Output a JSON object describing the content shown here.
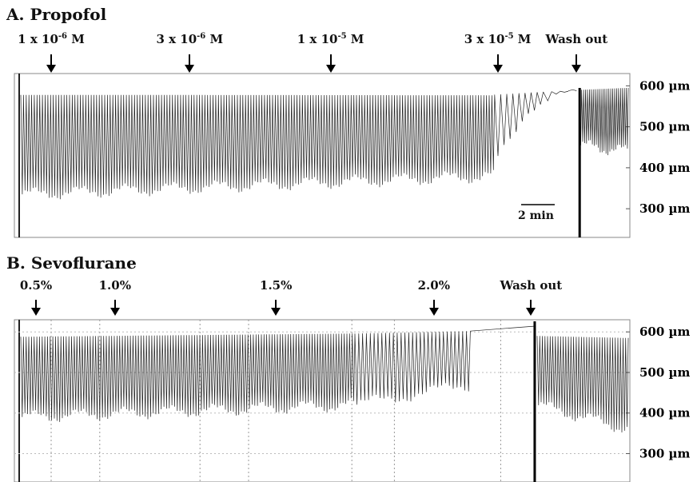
{
  "chart_data": [
    {
      "type": "line",
      "title": "A. Propofol",
      "xlabel": "",
      "ylabel": "",
      "y_unit": "µm",
      "yticks": [
        {
          "value": 600,
          "label": "600 µm"
        },
        {
          "value": 500,
          "label": "500 µm"
        },
        {
          "value": 400,
          "label": "400 µm"
        },
        {
          "value": 300,
          "label": "300 µm"
        }
      ],
      "ylim": [
        230,
        630
      ],
      "grid": false,
      "scale_bar": "2 min",
      "markers": [
        {
          "label_base": "1 x 10",
          "label_exp": "-6",
          "label_tail": " M",
          "x_frac": 0.05
        },
        {
          "label_base": "3 x 10",
          "label_exp": "-6",
          "label_tail": " M",
          "x_frac": 0.278
        },
        {
          "label_base": "1 x 10",
          "label_exp": "-5",
          "label_tail": " M",
          "x_frac": 0.51
        },
        {
          "label_base": "3 x 10",
          "label_exp": "-5",
          "label_tail": " M",
          "x_frac": 0.785
        },
        {
          "label_base": "Wash out",
          "label_exp": "",
          "label_tail": "",
          "x_frac": 0.915
        }
      ],
      "trace_segments": [
        {
          "t": [
            0.0,
            0.78
          ],
          "top": [
            578,
            577
          ],
          "trough": [
            335,
            380
          ],
          "beats": 175
        },
        {
          "t": [
            0.78,
            0.86
          ],
          "top": [
            578,
            585
          ],
          "trough": [
            420,
            560
          ],
          "beats": 8
        },
        {
          "t": [
            0.86,
            0.915
          ],
          "top": [
            585,
            588
          ],
          "trough": [
            560,
            588
          ],
          "beats": 4
        },
        {
          "t": [
            0.92,
            1.0
          ],
          "top": [
            590,
            595
          ],
          "trough": [
            455,
            440
          ],
          "beats": 25
        }
      ]
    },
    {
      "type": "line",
      "title": "B. Sevoflurane",
      "xlabel": "",
      "ylabel": "",
      "y_unit": "µm",
      "yticks": [
        {
          "value": 600,
          "label": "600 µm"
        },
        {
          "value": 500,
          "label": "500 µm"
        },
        {
          "value": 400,
          "label": "400 µm"
        },
        {
          "value": 300,
          "label": "300 µm"
        }
      ],
      "ylim": [
        230,
        630
      ],
      "grid": true,
      "markers": [
        {
          "label_base": "0.5%",
          "label_exp": "",
          "label_tail": "",
          "x_frac": 0.025
        },
        {
          "label_base": "1.0%",
          "label_exp": "",
          "label_tail": "",
          "x_frac": 0.155
        },
        {
          "label_base": "1.5%",
          "label_exp": "",
          "label_tail": "",
          "x_frac": 0.42
        },
        {
          "label_base": "2.0%",
          "label_exp": "",
          "label_tail": "",
          "x_frac": 0.68
        },
        {
          "label_base": "Wash out",
          "label_exp": "",
          "label_tail": "",
          "x_frac": 0.84
        }
      ],
      "trace_segments": [
        {
          "t": [
            0.0,
            0.55
          ],
          "top": [
            588,
            596
          ],
          "trough": [
            390,
            420
          ],
          "beats": 125
        },
        {
          "t": [
            0.55,
            0.74
          ],
          "top": [
            596,
            602
          ],
          "trough": [
            420,
            470
          ],
          "beats": 30
        },
        {
          "t": [
            0.74,
            0.845
          ],
          "top": [
            602,
            614
          ],
          "trough": [
            602,
            614
          ],
          "beats": 0
        },
        {
          "t": [
            0.85,
            1.0
          ],
          "top": [
            590,
            585
          ],
          "trough": [
            420,
            360
          ],
          "beats": 35
        }
      ]
    }
  ]
}
